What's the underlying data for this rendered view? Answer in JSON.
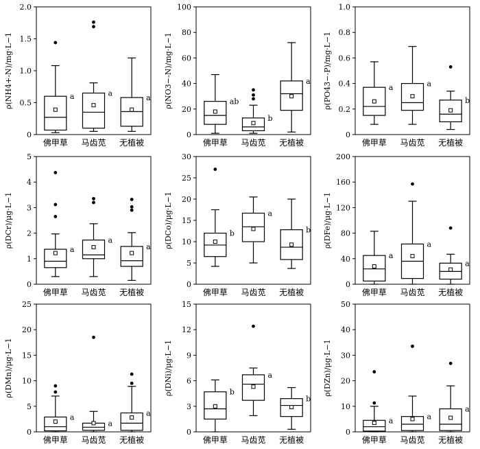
{
  "categories": [
    "佛甲草",
    "马齿苋",
    "无植被"
  ],
  "chart_data": [
    {
      "type": "box",
      "ylabel": "ρ(NH4+-N)/mg·L−1",
      "ylim": [
        0,
        2.0
      ],
      "yticks": [
        0,
        0.5,
        1.0,
        1.5,
        2.0
      ],
      "ytick_labels": [
        "0",
        "0.5",
        "1.0",
        "1.5",
        "2.0"
      ],
      "boxes": [
        {
          "category": "佛甲草",
          "whisker_low": 0.03,
          "q1": 0.07,
          "median": 0.27,
          "q3": 0.6,
          "whisker_high": 1.08,
          "mean": 0.39,
          "outliers": [
            1.44
          ],
          "letter": "a"
        },
        {
          "category": "马齿苋",
          "whisker_low": 0.05,
          "q1": 0.1,
          "median": 0.35,
          "q3": 0.65,
          "whisker_high": 0.81,
          "mean": 0.46,
          "outliers": [
            1.69,
            1.76
          ],
          "letter": "a"
        },
        {
          "category": "无植被",
          "whisker_low": 0.05,
          "q1": 0.13,
          "median": 0.36,
          "q3": 0.58,
          "whisker_high": 1.2,
          "mean": 0.39,
          "outliers": [],
          "letter": "a"
        }
      ]
    },
    {
      "type": "box",
      "ylabel": "ρ(NO3−-N)/mg·L−1",
      "ylim": [
        0,
        100
      ],
      "yticks": [
        0,
        20,
        40,
        60,
        80,
        100
      ],
      "ytick_labels": [
        "0",
        "20",
        "40",
        "60",
        "80",
        "100"
      ],
      "boxes": [
        {
          "category": "佛甲草",
          "whisker_low": 1,
          "q1": 8,
          "median": 15,
          "q3": 26,
          "whisker_high": 47,
          "mean": 18,
          "outliers": [],
          "letter": "ab"
        },
        {
          "category": "马齿苋",
          "whisker_low": 1,
          "q1": 3,
          "median": 6,
          "q3": 13,
          "whisker_high": 23,
          "mean": 9,
          "outliers": [
            28,
            31,
            35
          ],
          "letter": "b"
        },
        {
          "category": "无植被",
          "whisker_low": 2,
          "q1": 19,
          "median": 32,
          "q3": 42,
          "whisker_high": 72,
          "mean": 30,
          "outliers": [],
          "letter": "a"
        }
      ]
    },
    {
      "type": "box",
      "ylabel": "ρ(PO43−-P)/mg·L−1",
      "ylim": [
        0,
        1.0
      ],
      "yticks": [
        0,
        0.2,
        0.4,
        0.6,
        0.8,
        1.0
      ],
      "ytick_labels": [
        "0",
        "0.2",
        "0.4",
        "0.6",
        "0.8",
        "1.0"
      ],
      "boxes": [
        {
          "category": "佛甲草",
          "whisker_low": 0.08,
          "q1": 0.15,
          "median": 0.22,
          "q3": 0.37,
          "whisker_high": 0.57,
          "mean": 0.26,
          "outliers": [],
          "letter": "a"
        },
        {
          "category": "马齿苋",
          "whisker_low": 0.08,
          "q1": 0.19,
          "median": 0.25,
          "q3": 0.4,
          "whisker_high": 0.69,
          "mean": 0.3,
          "outliers": [],
          "letter": "a"
        },
        {
          "category": "无植被",
          "whisker_low": 0.04,
          "q1": 0.1,
          "median": 0.16,
          "q3": 0.27,
          "whisker_high": 0.34,
          "mean": 0.19,
          "outliers": [
            0.53
          ],
          "letter": "b"
        }
      ]
    },
    {
      "type": "box",
      "ylabel": "ρ(DCr)/μg·L−1",
      "ylim": [
        0,
        5
      ],
      "yticks": [
        0,
        1,
        2,
        3,
        4,
        5
      ],
      "ytick_labels": [
        "0",
        "1",
        "2",
        "3",
        "4",
        "5"
      ],
      "boxes": [
        {
          "category": "佛甲草",
          "whisker_low": 0.3,
          "q1": 0.65,
          "median": 0.9,
          "q3": 1.37,
          "whisker_high": 1.97,
          "mean": 1.22,
          "outliers": [
            2.65,
            3.12,
            4.37
          ],
          "letter": "a"
        },
        {
          "category": "马齿苋",
          "whisker_low": 0.3,
          "q1": 1.0,
          "median": 1.15,
          "q3": 1.73,
          "whisker_high": 2.37,
          "mean": 1.45,
          "outliers": [
            3.2,
            3.35
          ],
          "letter": "a"
        },
        {
          "category": "无植被",
          "whisker_low": 0.15,
          "q1": 0.7,
          "median": 0.92,
          "q3": 1.48,
          "whisker_high": 2.02,
          "mean": 1.22,
          "outliers": [
            2.9,
            3.03,
            3.32
          ],
          "letter": "a"
        }
      ]
    },
    {
      "type": "box",
      "ylabel": "ρ(DCo)/μg·L−1",
      "ylim": [
        0,
        30
      ],
      "yticks": [
        0,
        5,
        10,
        15,
        20,
        25,
        30
      ],
      "ytick_labels": [
        "0",
        "5",
        "10",
        "15",
        "20",
        "25",
        "30"
      ],
      "boxes": [
        {
          "category": "佛甲草",
          "whisker_low": 4.2,
          "q1": 6.5,
          "median": 9.2,
          "q3": 12,
          "whisker_high": 17.5,
          "mean": 10,
          "outliers": [
            27
          ],
          "letter": "b"
        },
        {
          "category": "马齿苋",
          "whisker_low": 5,
          "q1": 10,
          "median": 13.5,
          "q3": 16.7,
          "whisker_high": 20.5,
          "mean": 13,
          "outliers": [],
          "letter": "a"
        },
        {
          "category": "无植被",
          "whisker_low": 3.7,
          "q1": 5.8,
          "median": 8.7,
          "q3": 12.8,
          "whisker_high": 20,
          "mean": 9.3,
          "outliers": [],
          "letter": "b"
        }
      ]
    },
    {
      "type": "box",
      "ylabel": "ρ(DFe)/μg·L−1",
      "ylim": [
        0,
        200
      ],
      "yticks": [
        0,
        40,
        80,
        120,
        160,
        200
      ],
      "ytick_labels": [
        "0",
        "40",
        "80",
        "120",
        "160",
        "200"
      ],
      "boxes": [
        {
          "category": "佛甲草",
          "whisker_low": 0,
          "q1": 5,
          "median": 24,
          "q3": 45,
          "whisker_high": 83,
          "mean": 28,
          "outliers": [],
          "letter": "a"
        },
        {
          "category": "马齿苋",
          "whisker_low": 0,
          "q1": 9,
          "median": 36,
          "q3": 63,
          "whisker_high": 130,
          "mean": 44,
          "outliers": [
            157
          ],
          "letter": "a"
        },
        {
          "category": "无植被",
          "whisker_low": 0,
          "q1": 8,
          "median": 20,
          "q3": 33,
          "whisker_high": 47,
          "mean": 23,
          "outliers": [
            88
          ],
          "letter": "a"
        }
      ]
    },
    {
      "type": "box",
      "ylabel": "ρ(DMn)/μg·L−1",
      "ylim": [
        0,
        25
      ],
      "yticks": [
        0,
        5,
        10,
        15,
        20,
        25
      ],
      "ytick_labels": [
        "0",
        "5",
        "10",
        "15",
        "20",
        "25"
      ],
      "boxes": [
        {
          "category": "佛甲草",
          "whisker_low": 0,
          "q1": 0.2,
          "median": 1.0,
          "q3": 2.9,
          "whisker_high": 7,
          "mean": 2.0,
          "outliers": [
            7.8,
            9.0
          ],
          "letter": "a"
        },
        {
          "category": "马齿苋",
          "whisker_low": 0,
          "q1": 0.3,
          "median": 0.9,
          "q3": 1.7,
          "whisker_high": 4,
          "mean": 1.7,
          "outliers": [
            18.5
          ],
          "letter": "a"
        },
        {
          "category": "无植被",
          "whisker_low": 0,
          "q1": 0.3,
          "median": 1.7,
          "q3": 3.7,
          "whisker_high": 8.9,
          "mean": 2.8,
          "outliers": [
            9.5,
            11.3
          ],
          "letter": "a"
        }
      ]
    },
    {
      "type": "box",
      "ylabel": "ρ(DNi)/μg·L−1",
      "ylim": [
        0,
        15
      ],
      "yticks": [
        0,
        3,
        6,
        9,
        12,
        15
      ],
      "ytick_labels": [
        "0",
        "3",
        "6",
        "9",
        "12",
        "15"
      ],
      "boxes": [
        {
          "category": "佛甲草",
          "whisker_low": 0,
          "q1": 1.5,
          "median": 2.7,
          "q3": 4.7,
          "whisker_high": 6.1,
          "mean": 3.0,
          "outliers": [],
          "letter": "b"
        },
        {
          "category": "马齿苋",
          "whisker_low": 1.9,
          "q1": 3.7,
          "median": 5.6,
          "q3": 6.7,
          "whisker_high": 7.5,
          "mean": 5.3,
          "outliers": [
            12.4
          ],
          "letter": "a"
        },
        {
          "category": "无植被",
          "whisker_low": 0.3,
          "q1": 1.8,
          "median": 3.1,
          "q3": 3.9,
          "whisker_high": 5.2,
          "mean": 2.9,
          "outliers": [],
          "letter": "b"
        }
      ]
    },
    {
      "type": "box",
      "ylabel": "ρ(DZn)/μg·L−1",
      "ylim": [
        0,
        50
      ],
      "yticks": [
        0,
        10,
        20,
        30,
        40,
        50
      ],
      "ytick_labels": [
        "0",
        "10",
        "20",
        "30",
        "40",
        "50"
      ],
      "boxes": [
        {
          "category": "佛甲草",
          "whisker_low": 0,
          "q1": 0.3,
          "median": 2,
          "q3": 4.5,
          "whisker_high": 10,
          "mean": 3.5,
          "outliers": [
            11.3,
            23.5
          ],
          "letter": "a"
        },
        {
          "category": "马齿苋",
          "whisker_low": 0,
          "q1": 0.5,
          "median": 3,
          "q3": 6,
          "whisker_high": 14,
          "mean": 5,
          "outliers": [
            33.5
          ],
          "letter": "a"
        },
        {
          "category": "无植被",
          "whisker_low": 0,
          "q1": 0.5,
          "median": 3,
          "q3": 9,
          "whisker_high": 18,
          "mean": 5.5,
          "outliers": [
            26.8
          ],
          "letter": "a"
        }
      ]
    }
  ]
}
